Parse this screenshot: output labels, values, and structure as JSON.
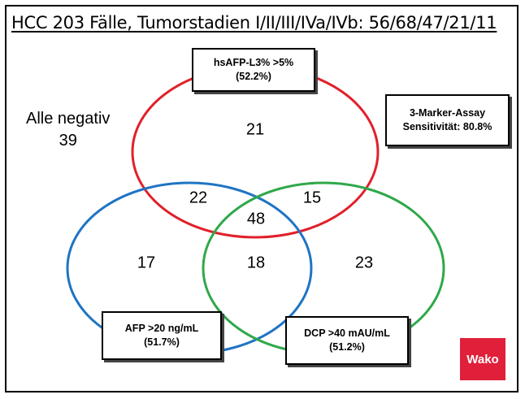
{
  "title": "HCC 203 Fälle, Tumorstadien I/II/III/IVa/IVb: 56/68/47/21/11",
  "sets": {
    "hsafp": {
      "name": "hsAFP-L3% >5%",
      "pct": "(52.2%)",
      "color": "#e1202a"
    },
    "afp": {
      "name": "AFP >20 ng/mL",
      "pct": "(51.7%)",
      "color": "#1f74c4"
    },
    "dcp": {
      "name": "DCP >40 mAU/mL",
      "pct": "(51.2%)",
      "color": "#2fa84a"
    }
  },
  "regions": {
    "hsafp_only": "21",
    "afp_hsafp": "22",
    "hsafp_dcp": "15",
    "all_three": "48",
    "afp_only": "17",
    "afp_dcp": "18",
    "dcp_only": "23"
  },
  "all_negative": {
    "label": "Alle negativ",
    "value": "39"
  },
  "assay": {
    "line1": "3-Marker-Assay",
    "line2": "Sensitivität: 80.8%"
  },
  "logo": "Wako"
}
